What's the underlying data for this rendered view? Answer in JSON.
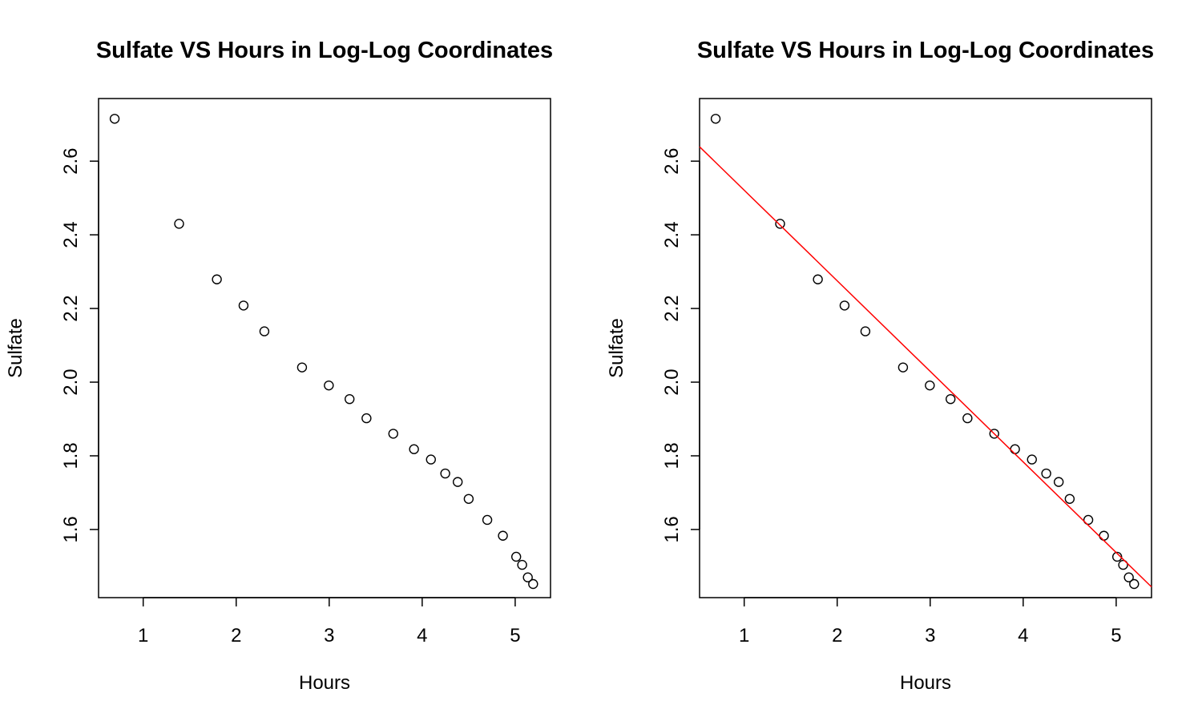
{
  "chart_data": [
    {
      "type": "scatter",
      "title": "Sulfate VS Hours in Log-Log Coordinates",
      "xlabel": "Hours",
      "ylabel": "Sulfate",
      "xlim": [
        0.52,
        5.38
      ],
      "ylim": [
        1.415,
        2.77
      ],
      "xticks": [
        1,
        2,
        3,
        4,
        5
      ],
      "yticks": [
        1.6,
        1.8,
        2.0,
        2.2,
        2.4,
        2.6
      ],
      "ytick_labels": [
        "1.6",
        "1.8",
        "2.0",
        "2.2",
        "2.4",
        "2.6"
      ],
      "grid": false,
      "x": [
        0.693,
        1.386,
        1.792,
        2.079,
        2.303,
        2.708,
        2.996,
        3.219,
        3.401,
        3.689,
        3.912,
        4.094,
        4.248,
        4.382,
        4.5,
        4.7,
        4.868,
        5.011,
        5.075,
        5.136,
        5.193
      ],
      "y": [
        2.715,
        2.43,
        2.279,
        2.208,
        2.138,
        2.04,
        1.991,
        1.954,
        1.902,
        1.86,
        1.818,
        1.79,
        1.752,
        1.729,
        1.683,
        1.626,
        1.583,
        1.526,
        1.504,
        1.47,
        1.452
      ]
    },
    {
      "type": "scatter",
      "title": "Sulfate VS Hours in Log-Log Coordinates",
      "xlabel": "Hours",
      "ylabel": "Sulfate",
      "xlim": [
        0.52,
        5.38
      ],
      "ylim": [
        1.415,
        2.77
      ],
      "xticks": [
        1,
        2,
        3,
        4,
        5
      ],
      "yticks": [
        1.6,
        1.8,
        2.0,
        2.2,
        2.4,
        2.6
      ],
      "ytick_labels": [
        "1.6",
        "1.8",
        "2.0",
        "2.2",
        "2.4",
        "2.6"
      ],
      "grid": false,
      "x": [
        0.693,
        1.386,
        1.792,
        2.079,
        2.303,
        2.708,
        2.996,
        3.219,
        3.401,
        3.689,
        3.912,
        4.094,
        4.248,
        4.382,
        4.5,
        4.7,
        4.868,
        5.011,
        5.075,
        5.136,
        5.193
      ],
      "y": [
        2.715,
        2.43,
        2.279,
        2.208,
        2.138,
        2.04,
        1.991,
        1.954,
        1.902,
        1.86,
        1.818,
        1.79,
        1.752,
        1.729,
        1.683,
        1.626,
        1.583,
        1.526,
        1.504,
        1.47,
        1.452
      ],
      "fit_line": {
        "intercept": 2.767,
        "slope": -0.2459,
        "color": "#ff0000"
      }
    }
  ]
}
